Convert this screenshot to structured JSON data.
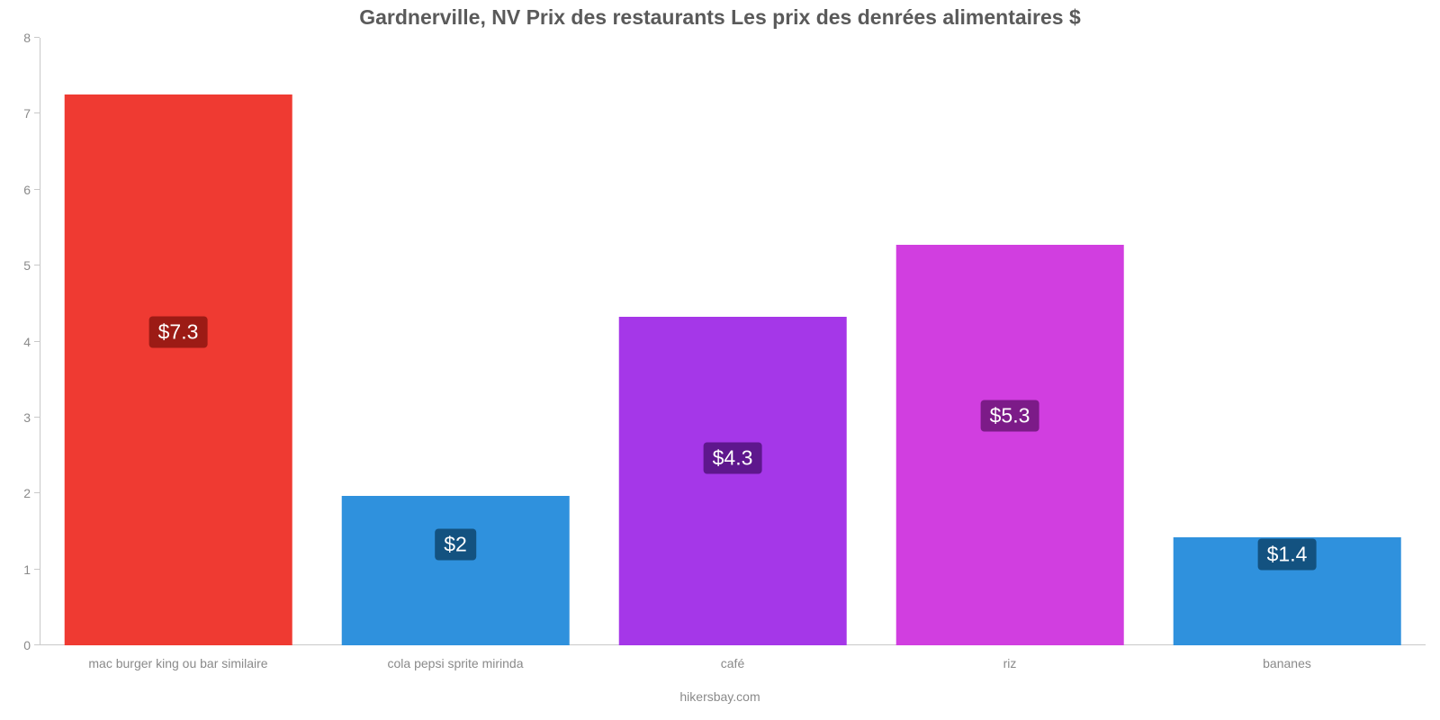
{
  "chart": {
    "type": "bar",
    "title": "Gardnerville, NV Prix des restaurants Les prix des denrées alimentaires $",
    "title_fontsize": 23,
    "title_color": "#5a5a5a",
    "background_color": "#ffffff",
    "axis_color": "#c9c9c9",
    "tick_label_color": "#8a8a8a",
    "tick_fontsize": 14,
    "ylim": [
      0,
      8
    ],
    "ytick_step": 1,
    "yticks": [
      "0",
      "1",
      "2",
      "3",
      "4",
      "5",
      "6",
      "7",
      "8"
    ],
    "bar_width_ratio": 0.82,
    "value_label_fontsize": 23,
    "value_label_text_color": "#ffffff",
    "value_label_radius": 4,
    "category_fontsize": 14,
    "categories": [
      "mac burger king ou bar similaire",
      "cola pepsi sprite mirinda",
      "café",
      "riz",
      "bananes"
    ],
    "values": [
      7.25,
      1.97,
      4.33,
      5.28,
      1.42
    ],
    "value_labels": [
      "$7.3",
      "$2",
      "$4.3",
      "$5.3",
      "$1.4"
    ],
    "bar_colors": [
      "#ef3a32",
      "#2f91dd",
      "#a537e8",
      "#d13ee0",
      "#2f91dd"
    ],
    "label_bg_colors": [
      "#9c1b15",
      "#135280",
      "#5e178d",
      "#7c1b88",
      "#135280"
    ],
    "label_center_values": [
      4.12,
      1.33,
      2.47,
      3.02,
      1.2
    ],
    "footer": "hikersbay.com"
  }
}
